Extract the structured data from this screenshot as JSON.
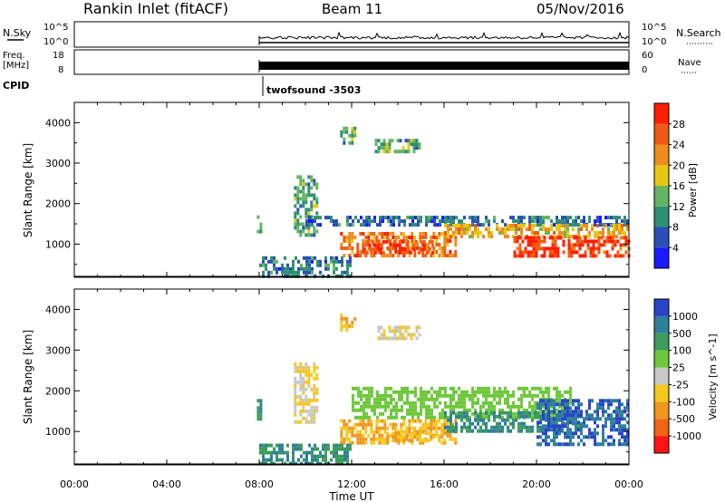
{
  "header": {
    "station": "Rankin Inlet (fitACF)",
    "beam": "Beam 11",
    "date": "05/Nov/2016"
  },
  "nsky_panel": {
    "left_label": "N.Sky",
    "right_label": "N.Search",
    "left_ticks": [
      "10^5",
      "10^0"
    ],
    "right_ticks": [
      "10^5",
      "10^0"
    ]
  },
  "freq_panel": {
    "left_label_1": "Freq.",
    "left_label_2": "[MHz]",
    "right_label": "Nave",
    "left_ticks": [
      "18",
      "8"
    ],
    "right_ticks": [
      "60",
      "0"
    ]
  },
  "cpid": {
    "label": "CPID",
    "program": "twofsound -3503"
  },
  "time_axis": {
    "label": "Time UT",
    "ticks": [
      "00:00",
      "04:00",
      "08:00",
      "12:00",
      "16:00",
      "20:00",
      "00:00"
    ]
  },
  "power_colorbar": {
    "label": "Power [dB]",
    "ticks": [
      "4",
      "8",
      "12",
      "16",
      "20",
      "24",
      "28"
    ],
    "colors": [
      "#1a1aff",
      "#2a4fb8",
      "#2f8f72",
      "#64b464",
      "#e6c814",
      "#f08c1e",
      "#f05a14",
      "#ff1e00"
    ]
  },
  "velocity_colorbar": {
    "label": "Velocity [m s^-1]",
    "ticks": [
      "1000",
      "500",
      "100",
      "25",
      "-25",
      "-100",
      "-500",
      "-1000"
    ],
    "colors": [
      "#2845c8",
      "#2f7f9a",
      "#3c9c5a",
      "#6ec83c",
      "#c8c8c8",
      "#f5c81e",
      "#f0961e",
      "#f06414",
      "#ff1414"
    ]
  },
  "chart_data": [
    {
      "type": "heatmap",
      "title": "",
      "xlabel": "",
      "ylabel": "Slant Range [km]",
      "xlim": [
        0,
        24
      ],
      "ylim": [
        180,
        4500
      ],
      "yticks": [
        1000,
        2000,
        3000,
        4000
      ],
      "quantity": "Power [dB]",
      "regions": [
        {
          "t": [
            7.9,
            8.1
          ],
          "r": [
            1300,
            1800
          ],
          "v": 12
        },
        {
          "t": [
            9.5,
            10.5
          ],
          "r": [
            1200,
            2700
          ],
          "v": 12
        },
        {
          "t": [
            10.0,
            24.0
          ],
          "r": [
            1500,
            1700
          ],
          "v": 8
        },
        {
          "t": [
            11.5,
            16.5
          ],
          "r": [
            700,
            1300
          ],
          "v": 24
        },
        {
          "t": [
            12.5,
            15.5
          ],
          "r": [
            800,
            1100
          ],
          "v": 28
        },
        {
          "t": [
            16.0,
            24.0
          ],
          "r": [
            1200,
            1500
          ],
          "v": 20
        },
        {
          "t": [
            19.0,
            24.0
          ],
          "r": [
            700,
            1200
          ],
          "v": 28
        },
        {
          "t": [
            11.5,
            12.2
          ],
          "r": [
            3500,
            3900
          ],
          "v": 12
        },
        {
          "t": [
            13.0,
            15.0
          ],
          "r": [
            3300,
            3600
          ],
          "v": 12
        },
        {
          "t": [
            8.0,
            12.0
          ],
          "r": [
            200,
            700
          ],
          "v": 8
        }
      ]
    },
    {
      "type": "heatmap",
      "title": "",
      "xlabel": "Time UT",
      "ylabel": "Slant Range [km]",
      "xlim": [
        0,
        24
      ],
      "ylim": [
        180,
        4500
      ],
      "yticks": [
        1000,
        2000,
        3000,
        4000
      ],
      "quantity": "Velocity [m s^-1]",
      "regions": [
        {
          "t": [
            7.9,
            8.1
          ],
          "r": [
            1300,
            1800
          ],
          "v": 100
        },
        {
          "t": [
            9.5,
            10.5
          ],
          "r": [
            1200,
            2700
          ],
          "v": -100
        },
        {
          "t": [
            12.0,
            21.5
          ],
          "r": [
            1300,
            2100
          ],
          "v": 0
        },
        {
          "t": [
            11.5,
            16.5
          ],
          "r": [
            700,
            1300
          ],
          "v": -500
        },
        {
          "t": [
            13.5,
            16.0
          ],
          "r": [
            800,
            1000
          ],
          "v": -500
        },
        {
          "t": [
            16.0,
            22.0
          ],
          "r": [
            1000,
            1500
          ],
          "v": 100
        },
        {
          "t": [
            20.0,
            24.0
          ],
          "r": [
            700,
            1800
          ],
          "v": 500
        },
        {
          "t": [
            11.5,
            12.2
          ],
          "r": [
            3500,
            3900
          ],
          "v": -500
        },
        {
          "t": [
            13.0,
            15.0
          ],
          "r": [
            3300,
            3600
          ],
          "v": -100
        },
        {
          "t": [
            8.0,
            12.0
          ],
          "r": [
            200,
            700
          ],
          "v": 100
        }
      ]
    }
  ]
}
